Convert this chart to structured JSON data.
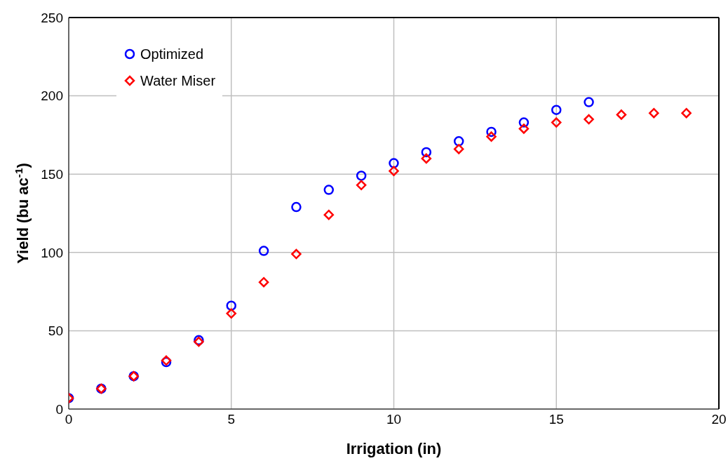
{
  "chart_data": {
    "type": "scatter",
    "xlabel": "Irrigation (in)",
    "ylabel": "Yield (bu ac$^{-1}$)",
    "xlim": [
      0,
      20
    ],
    "xticks": [
      0,
      5,
      10,
      15,
      20
    ],
    "ylim": [
      0,
      250
    ],
    "yticks": [
      0,
      50,
      100,
      150,
      200,
      250
    ],
    "grid": true,
    "legend": "top left",
    "series": [
      {
        "name": "Optimized",
        "color": "#0000ff",
        "marker": "circle",
        "x": [
          0,
          1,
          2,
          3,
          4,
          5,
          6,
          7,
          8,
          9,
          10,
          11,
          12,
          13,
          14,
          15,
          16
        ],
        "values": [
          7,
          13,
          21,
          30,
          44,
          66,
          101,
          129,
          140,
          149,
          157,
          164,
          171,
          177,
          183,
          191,
          196
        ]
      },
      {
        "name": "Water Miser",
        "color": "#ff0000",
        "marker": "diamond",
        "x": [
          0,
          1,
          2,
          3,
          4,
          5,
          6,
          7,
          8,
          9,
          10,
          11,
          12,
          13,
          14,
          15,
          16,
          17,
          18,
          19
        ],
        "values": [
          7,
          13,
          21,
          31,
          43,
          61,
          81,
          99,
          124,
          143,
          152,
          160,
          166,
          174,
          179,
          183,
          185,
          188,
          189,
          189
        ]
      }
    ]
  }
}
